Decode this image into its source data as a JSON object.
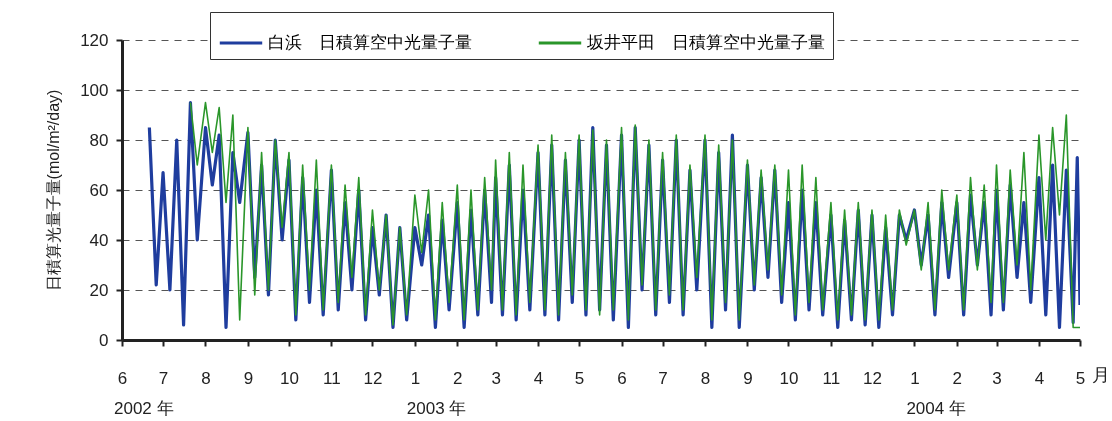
{
  "chart_data": {
    "type": "line",
    "xlabel": "月",
    "ylabel": "日積算光量子量(mol/m²/day)",
    "xlim": [
      "2002-06",
      "2004-05"
    ],
    "xticks": [
      {
        "value": "2002-06",
        "label": "6"
      },
      {
        "value": "2002-07",
        "label": "7"
      },
      {
        "value": "2002-08",
        "label": "8"
      },
      {
        "value": "2002-09",
        "label": "9"
      },
      {
        "value": "2002-10",
        "label": "10"
      },
      {
        "value": "2002-11",
        "label": "11"
      },
      {
        "value": "2002-12",
        "label": "12"
      },
      {
        "value": "2003-01",
        "label": "1"
      },
      {
        "value": "2003-02",
        "label": "2"
      },
      {
        "value": "2003-03",
        "label": "3"
      },
      {
        "value": "2003-04",
        "label": "4"
      },
      {
        "value": "2003-05",
        "label": "5"
      },
      {
        "value": "2003-06",
        "label": "6"
      },
      {
        "value": "2003-07",
        "label": "7"
      },
      {
        "value": "2003-08",
        "label": "8"
      },
      {
        "value": "2003-09",
        "label": "9"
      },
      {
        "value": "2003-10",
        "label": "10"
      },
      {
        "value": "2003-11",
        "label": "11"
      },
      {
        "value": "2003-12",
        "label": "12"
      },
      {
        "value": "2004-01",
        "label": "1"
      },
      {
        "value": "2004-02",
        "label": "2"
      },
      {
        "value": "2004-03",
        "label": "3"
      },
      {
        "value": "2004-04",
        "label": "4"
      },
      {
        "value": "2004-05",
        "label": "5"
      }
    ],
    "ylim": [
      0,
      120
    ],
    "yticks": [
      0,
      20,
      40,
      60,
      80,
      100,
      120
    ],
    "grid": "y",
    "legend": "top",
    "annotations": [
      "2002 年",
      "2003 年",
      "2004 年"
    ],
    "series": [
      {
        "name": "白浜　日積算空中光量子量",
        "color": "#1f3d9e",
        "x": [
          "2002-06-21",
          "2002-06-26",
          "2002-07-01",
          "2002-07-06",
          "2002-07-11",
          "2002-07-16",
          "2002-07-21",
          "2002-07-26",
          "2002-08-01",
          "2002-08-06",
          "2002-08-11",
          "2002-08-16",
          "2002-08-21",
          "2002-08-26",
          "2002-09-01",
          "2002-09-06",
          "2002-09-11",
          "2002-09-16",
          "2002-09-21",
          "2002-09-26",
          "2002-10-01",
          "2002-10-06",
          "2002-10-11",
          "2002-10-16",
          "2002-10-21",
          "2002-10-26",
          "2002-11-01",
          "2002-11-06",
          "2002-11-11",
          "2002-11-16",
          "2002-11-21",
          "2002-11-26",
          "2002-12-01",
          "2002-12-06",
          "2002-12-11",
          "2002-12-16",
          "2002-12-21",
          "2002-12-26",
          "2003-01-01",
          "2003-01-06",
          "2003-01-11",
          "2003-01-16",
          "2003-01-21",
          "2003-01-26",
          "2003-02-01",
          "2003-02-06",
          "2003-02-11",
          "2003-02-16",
          "2003-02-21",
          "2003-02-26",
          "2003-03-01",
          "2003-03-06",
          "2003-03-11",
          "2003-03-16",
          "2003-03-21",
          "2003-03-26",
          "2003-04-01",
          "2003-04-06",
          "2003-04-11",
          "2003-04-16",
          "2003-04-21",
          "2003-04-26",
          "2003-05-01",
          "2003-05-06",
          "2003-05-11",
          "2003-05-16",
          "2003-05-21",
          "2003-05-26",
          "2003-06-01",
          "2003-06-06",
          "2003-06-11",
          "2003-06-16",
          "2003-06-21",
          "2003-06-26",
          "2003-07-01",
          "2003-07-06",
          "2003-07-11",
          "2003-07-16",
          "2003-07-21",
          "2003-07-26",
          "2003-08-01",
          "2003-08-06",
          "2003-08-11",
          "2003-08-16",
          "2003-08-21",
          "2003-08-26",
          "2003-09-01",
          "2003-09-06",
          "2003-09-11",
          "2003-09-16",
          "2003-09-21",
          "2003-09-26",
          "2003-10-01",
          "2003-10-06",
          "2003-10-11",
          "2003-10-16",
          "2003-10-21",
          "2003-10-26",
          "2003-11-01",
          "2003-11-06",
          "2003-11-11",
          "2003-11-16",
          "2003-11-21",
          "2003-11-26",
          "2003-12-01",
          "2003-12-06",
          "2003-12-11",
          "2003-12-16",
          "2003-12-21",
          "2003-12-26",
          "2004-01-01",
          "2004-01-06",
          "2004-01-11",
          "2004-01-16",
          "2004-01-21",
          "2004-01-26",
          "2004-02-01",
          "2004-02-06",
          "2004-02-11",
          "2004-02-16",
          "2004-02-21",
          "2004-02-26",
          "2004-03-01",
          "2004-03-06",
          "2004-03-11",
          "2004-03-16",
          "2004-03-21",
          "2004-03-26",
          "2004-04-01",
          "2004-04-06",
          "2004-04-11",
          "2004-04-16",
          "2004-04-21",
          "2004-04-26",
          "2004-04-29",
          "2004-05-01"
        ],
        "values": [
          85,
          22,
          67,
          20,
          80,
          6,
          95,
          40,
          85,
          62,
          82,
          5,
          75,
          55,
          83,
          25,
          70,
          18,
          80,
          40,
          72,
          8,
          65,
          15,
          60,
          10,
          68,
          12,
          55,
          20,
          60,
          8,
          45,
          18,
          50,
          5,
          45,
          8,
          45,
          30,
          50,
          5,
          48,
          12,
          55,
          5,
          52,
          10,
          60,
          15,
          65,
          10,
          70,
          8,
          60,
          12,
          75,
          10,
          78,
          8,
          72,
          15,
          80,
          10,
          85,
          12,
          78,
          8,
          82,
          5,
          85,
          20,
          78,
          10,
          72,
          15,
          80,
          10,
          68,
          20,
          80,
          5,
          75,
          12,
          82,
          5,
          70,
          20,
          65,
          25,
          68,
          15,
          55,
          8,
          60,
          12,
          55,
          10,
          50,
          5,
          48,
          8,
          52,
          6,
          50,
          5,
          45,
          10,
          50,
          40,
          52,
          30,
          50,
          10,
          55,
          25,
          55,
          10,
          58,
          30,
          55,
          10,
          60,
          12,
          62,
          25,
          55,
          15,
          65,
          10,
          70,
          5,
          68,
          7,
          73,
          14
        ]
      },
      {
        "name": "坂井平田　日積算空中光量子量",
        "color": "#2a962a",
        "x": [
          "2002-07-21",
          "2002-07-26",
          "2002-08-01",
          "2002-08-06",
          "2002-08-11",
          "2002-08-16",
          "2002-08-21",
          "2002-08-26",
          "2002-09-01",
          "2002-09-06",
          "2002-09-11",
          "2002-09-16",
          "2002-09-21",
          "2002-09-26",
          "2002-10-01",
          "2002-10-06",
          "2002-10-11",
          "2002-10-16",
          "2002-10-21",
          "2002-10-26",
          "2002-11-01",
          "2002-11-06",
          "2002-11-11",
          "2002-11-16",
          "2002-11-21",
          "2002-11-26",
          "2002-12-01",
          "2002-12-06",
          "2002-12-11",
          "2002-12-16",
          "2002-12-21",
          "2002-12-26",
          "2003-01-01",
          "2003-01-06",
          "2003-01-11",
          "2003-01-16",
          "2003-01-21",
          "2003-01-26",
          "2003-02-01",
          "2003-02-06",
          "2003-02-11",
          "2003-02-16",
          "2003-02-21",
          "2003-02-26",
          "2003-03-01",
          "2003-03-06",
          "2003-03-11",
          "2003-03-16",
          "2003-03-21",
          "2003-03-26",
          "2003-04-01",
          "2003-04-06",
          "2003-04-11",
          "2003-04-16",
          "2003-04-21",
          "2003-04-26",
          "2003-05-01",
          "2003-05-06",
          "2003-05-11",
          "2003-05-16",
          "2003-05-21",
          "2003-05-26",
          "2003-06-01",
          "2003-06-06",
          "2003-06-11",
          "2003-06-16",
          "2003-06-21",
          "2003-06-26",
          "2003-07-01",
          "2003-07-06",
          "2003-07-11",
          "2003-07-16",
          "2003-07-21",
          "2003-07-26",
          "2003-08-01",
          "2003-08-06",
          "2003-08-11",
          "2003-08-16",
          "2003-08-21",
          "2003-08-26",
          "2003-09-01",
          "2003-09-06",
          "2003-09-11",
          "2003-09-16",
          "2003-09-21",
          "2003-09-26",
          "2003-10-01",
          "2003-10-06",
          "2003-10-11",
          "2003-10-16",
          "2003-10-21",
          "2003-10-26",
          "2003-11-01",
          "2003-11-06",
          "2003-11-11",
          "2003-11-16",
          "2003-11-21",
          "2003-11-26",
          "2003-12-01",
          "2003-12-06",
          "2003-12-11",
          "2003-12-16",
          "2003-12-21",
          "2003-12-26",
          "2004-01-01",
          "2004-01-06",
          "2004-01-11",
          "2004-01-16",
          "2004-01-21",
          "2004-01-26",
          "2004-02-01",
          "2004-02-06",
          "2004-02-11",
          "2004-02-16",
          "2004-02-21",
          "2004-02-26",
          "2004-03-01",
          "2004-03-06",
          "2004-03-11",
          "2004-03-16",
          "2004-03-21",
          "2004-03-26",
          "2004-04-01",
          "2004-04-06",
          "2004-04-11",
          "2004-04-16",
          "2004-04-21",
          "2004-04-26",
          "2004-05-01"
        ],
        "values": [
          95,
          70,
          95,
          75,
          93,
          55,
          90,
          8,
          85,
          18,
          75,
          20,
          80,
          45,
          75,
          10,
          70,
          20,
          72,
          12,
          70,
          15,
          62,
          25,
          65,
          10,
          52,
          20,
          50,
          6,
          45,
          10,
          58,
          35,
          60,
          8,
          55,
          15,
          62,
          8,
          60,
          12,
          65,
          20,
          72,
          12,
          75,
          10,
          70,
          15,
          78,
          12,
          82,
          10,
          75,
          18,
          82,
          12,
          84,
          10,
          80,
          12,
          85,
          8,
          86,
          22,
          80,
          12,
          75,
          18,
          82,
          12,
          70,
          25,
          82,
          8,
          78,
          15,
          80,
          8,
          72,
          22,
          68,
          28,
          70,
          18,
          68,
          10,
          70,
          15,
          65,
          12,
          55,
          8,
          52,
          10,
          55,
          8,
          52,
          8,
          50,
          12,
          52,
          38,
          52,
          28,
          55,
          12,
          60,
          28,
          58,
          12,
          65,
          28,
          62,
          15,
          70,
          15,
          68,
          30,
          75,
          20,
          82,
          40,
          85,
          50,
          90,
          5,
          5
        ]
      }
    ]
  }
}
